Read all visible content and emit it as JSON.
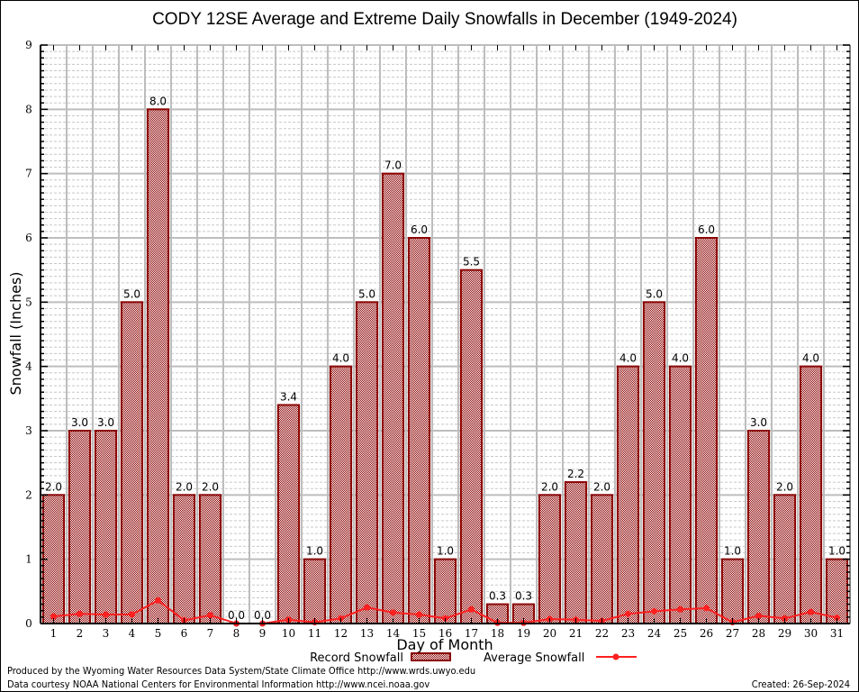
{
  "chart_data": {
    "type": "bar",
    "title": "CODY 12SE Average and Extreme Daily Snowfalls in December (1949-2024)",
    "xlabel": "Day of Month",
    "ylabel": "Snowfall (Inches)",
    "ylim": [
      0,
      9
    ],
    "yticks": [
      "0",
      "1",
      "2",
      "3",
      "4",
      "5",
      "6",
      "7",
      "8",
      "9"
    ],
    "categories": [
      "1",
      "2",
      "3",
      "4",
      "5",
      "6",
      "7",
      "8",
      "9",
      "10",
      "11",
      "12",
      "13",
      "14",
      "15",
      "16",
      "17",
      "18",
      "19",
      "20",
      "21",
      "22",
      "23",
      "24",
      "25",
      "26",
      "27",
      "28",
      "29",
      "30",
      "31"
    ],
    "grid": true,
    "legend_position": "bottom",
    "series": [
      {
        "name": "Record Snowfall",
        "type": "bar",
        "color": "#8b0000",
        "values": [
          2.0,
          3.0,
          3.0,
          5.0,
          8.0,
          2.0,
          2.0,
          0.0,
          0.0,
          3.4,
          1.0,
          4.0,
          5.0,
          7.0,
          6.0,
          1.0,
          5.5,
          0.3,
          0.3,
          2.0,
          2.2,
          2.0,
          4.0,
          5.0,
          4.0,
          6.0,
          1.0,
          3.0,
          2.0,
          4.0,
          1.0
        ],
        "labels": [
          "2.0",
          "3.0",
          "3.0",
          "5.0",
          "8.0",
          "2.0",
          "2.0",
          "0.0",
          "0.0",
          "3.4",
          "1.0",
          "4.0",
          "5.0",
          "7.0",
          "6.0",
          "1.0",
          "5.5",
          "0.3",
          "0.3",
          "2.0",
          "2.2",
          "2.0",
          "4.0",
          "5.0",
          "4.0",
          "6.0",
          "1.0",
          "3.0",
          "2.0",
          "4.0",
          "1.0"
        ]
      },
      {
        "name": "Average Snowfall",
        "type": "line",
        "color": "#ff2020",
        "values": [
          0.11,
          0.15,
          0.14,
          0.14,
          0.36,
          0.05,
          0.13,
          0.0,
          0.0,
          0.06,
          0.02,
          0.08,
          0.25,
          0.17,
          0.14,
          0.08,
          0.22,
          0.01,
          0.01,
          0.07,
          0.06,
          0.04,
          0.15,
          0.19,
          0.22,
          0.24,
          0.02,
          0.12,
          0.08,
          0.18,
          0.09
        ]
      }
    ]
  },
  "footer": {
    "produced_by": "Produced by the Wyoming Water Resources Data System/State Climate Office http://www.wrds.uwyo.edu",
    "data_courtesy": "Data courtesy NOAA National Centers for Environmental Information http://www.ncei.noaa.gov",
    "created": "Created: 26-Sep-2024"
  }
}
